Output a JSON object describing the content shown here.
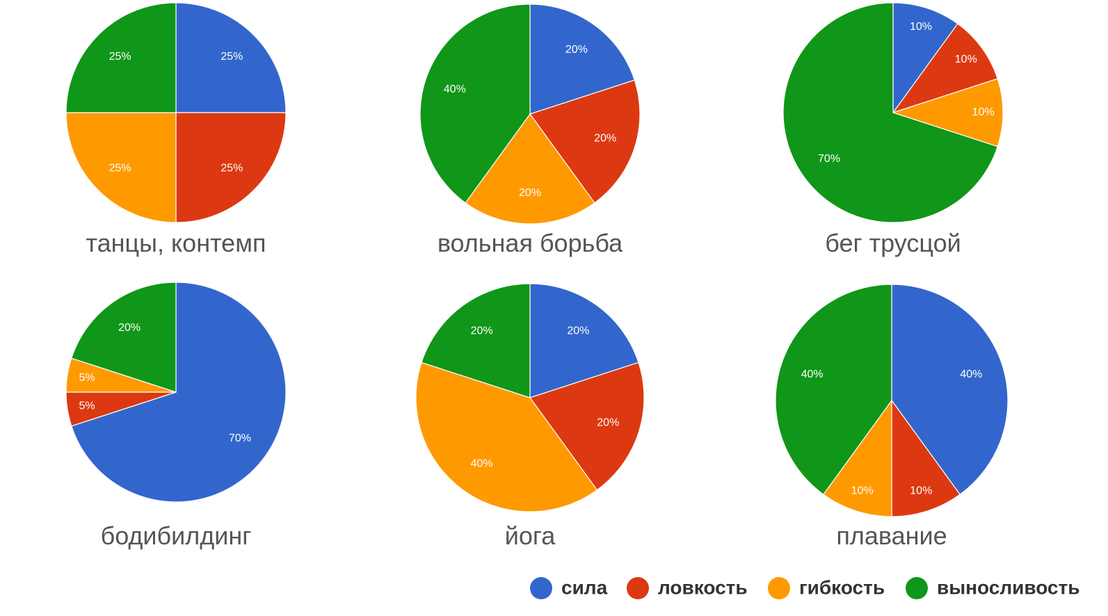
{
  "chart_data": {
    "type": "pie",
    "series": [
      {
        "name": "сила",
        "color": "#3366cc"
      },
      {
        "name": "ловкость",
        "color": "#dc3912"
      },
      {
        "name": "гибкость",
        "color": "#ff9900"
      },
      {
        "name": "выносливость",
        "color": "#109618"
      }
    ],
    "legend": {
      "position": "bottom-right"
    },
    "charts": [
      {
        "title": "танцы, контемп",
        "values": [
          25,
          25,
          25,
          25
        ],
        "labels": [
          "25%",
          "25%",
          "25%",
          "25%"
        ]
      },
      {
        "title": "вольная борьба",
        "values": [
          20,
          20,
          20,
          40
        ],
        "labels": [
          "20%",
          "20%",
          "20%",
          "40%"
        ]
      },
      {
        "title": "бег трусцой",
        "values": [
          10,
          10,
          10,
          70
        ],
        "labels": [
          "10%",
          "10%",
          "10%",
          "70%"
        ]
      },
      {
        "title": "бодибилдинг",
        "values": [
          70,
          5,
          5,
          20
        ],
        "labels": [
          "70%",
          "5%",
          "5%",
          "20%"
        ]
      },
      {
        "title": "йога",
        "values": [
          20,
          20,
          40,
          20
        ],
        "labels": [
          "20%",
          "20%",
          "40%",
          "20%"
        ]
      },
      {
        "title": "плавание",
        "values": [
          40,
          10,
          10,
          40
        ],
        "labels": [
          "40%",
          "10%",
          "10%",
          "40%"
        ]
      }
    ]
  }
}
